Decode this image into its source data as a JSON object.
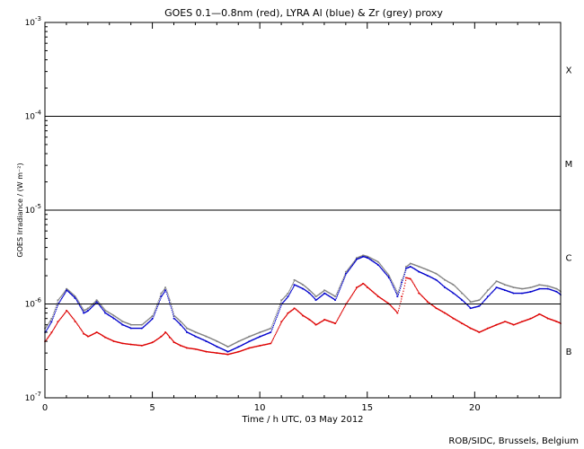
{
  "chart_data": {
    "type": "scatter",
    "title": "GOES 0.1—0.8nm (red), LYRA Al (blue) & Zr (grey) proxy",
    "xlabel": "Time / h UTC, 03 May 2012",
    "ylabel": "GOES Irradiance / (W m⁻²)",
    "xlim": [
      0,
      24
    ],
    "ylim": [
      1e-07,
      0.001
    ],
    "yscale": "log",
    "grid": false,
    "x_ticks": [
      {
        "value": 0,
        "label": "0"
      },
      {
        "value": 5,
        "label": "5"
      },
      {
        "value": 10,
        "label": "10"
      },
      {
        "value": 15,
        "label": "15"
      },
      {
        "value": 20,
        "label": "20"
      }
    ],
    "y_ticks": [
      {
        "mantissa": "10",
        "exp": "-7",
        "value": 1e-07
      },
      {
        "mantissa": "10",
        "exp": "-6",
        "value": 1e-06
      },
      {
        "mantissa": "10",
        "exp": "-5",
        "value": 1e-05
      },
      {
        "mantissa": "10",
        "exp": "-4",
        "value": 0.0001
      },
      {
        "mantissa": "10",
        "exp": "-3",
        "value": 0.001
      }
    ],
    "flare_thresholds": [
      1e-06,
      1e-05,
      0.0001
    ],
    "flare_classes": [
      {
        "label": "X",
        "value": 0.000316
      },
      {
        "label": "M",
        "value": 3.16e-05
      },
      {
        "label": "C",
        "value": 3.16e-06
      },
      {
        "label": "B",
        "value": 3.16e-07
      }
    ],
    "series": [
      {
        "color": "#808080",
        "x": [
          0,
          0.3,
          0.6,
          1.0,
          1.4,
          1.8,
          2.0,
          2.4,
          2.8,
          3.2,
          3.6,
          4.0,
          4.5,
          5.0,
          5.4,
          5.6,
          5.8,
          6.0,
          6.3,
          6.6,
          7.0,
          7.5,
          8.0,
          8.5,
          9.0,
          9.5,
          10.0,
          10.5,
          11.0,
          11.3,
          11.6,
          12.0,
          12.3,
          12.6,
          13.0,
          13.5,
          14.0,
          14.5,
          14.8,
          15.0,
          15.5,
          16.0,
          16.4,
          16.6,
          16.8,
          17.0,
          17.4,
          17.8,
          18.2,
          18.6,
          19.0,
          19.4,
          19.8,
          20.2,
          20.6,
          21.0,
          21.4,
          21.8,
          22.2,
          22.6,
          23.0,
          23.4,
          23.8,
          24.0
        ],
        "values": [
          5.5e-07,
          7e-07,
          1.1e-06,
          1.45e-06,
          1.2e-06,
          8.5e-07,
          9e-07,
          1.1e-06,
          8.5e-07,
          7.5e-07,
          6.5e-07,
          6e-07,
          6e-07,
          7.5e-07,
          1.3e-06,
          1.5e-06,
          1.1e-06,
          7.5e-07,
          6.5e-07,
          5.5e-07,
          5e-07,
          4.5e-07,
          4e-07,
          3.5e-07,
          4e-07,
          4.5e-07,
          5e-07,
          5.5e-07,
          1.1e-06,
          1.3e-06,
          1.8e-06,
          1.6e-06,
          1.4e-06,
          1.2e-06,
          1.4e-06,
          1.2e-06,
          2.2e-06,
          3.1e-06,
          3.3e-06,
          3.2e-06,
          2.8e-06,
          2e-06,
          1.3e-06,
          1.8e-06,
          2.5e-06,
          2.7e-06,
          2.5e-06,
          2.3e-06,
          2.1e-06,
          1.8e-06,
          1.6e-06,
          1.3e-06,
          1.05e-06,
          1.1e-06,
          1.4e-06,
          1.75e-06,
          1.6e-06,
          1.5e-06,
          1.45e-06,
          1.5e-06,
          1.6e-06,
          1.55e-06,
          1.45e-06,
          1.35e-06
        ]
      },
      {
        "color": "#0000cc",
        "x": [
          0,
          0.3,
          0.6,
          1.0,
          1.4,
          1.8,
          2.0,
          2.4,
          2.8,
          3.2,
          3.6,
          4.0,
          4.5,
          5.0,
          5.4,
          5.6,
          5.8,
          6.0,
          6.3,
          6.6,
          7.0,
          7.5,
          8.0,
          8.5,
          9.0,
          9.5,
          10.0,
          10.5,
          11.0,
          11.3,
          11.6,
          12.0,
          12.3,
          12.6,
          13.0,
          13.5,
          14.0,
          14.5,
          14.8,
          15.0,
          15.5,
          16.0,
          16.4,
          16.6,
          16.8,
          17.0,
          17.4,
          17.8,
          18.2,
          18.6,
          19.0,
          19.4,
          19.8,
          20.2,
          20.6,
          21.0,
          21.4,
          21.8,
          22.2,
          22.6,
          23.0,
          23.4,
          23.8,
          24.0
        ],
        "values": [
          5e-07,
          6.5e-07,
          1e-06,
          1.4e-06,
          1.15e-06,
          8e-07,
          8.5e-07,
          1.05e-06,
          8e-07,
          7e-07,
          6e-07,
          5.5e-07,
          5.5e-07,
          7e-07,
          1.2e-06,
          1.4e-06,
          1e-06,
          7e-07,
          6e-07,
          5e-07,
          4.5e-07,
          4e-07,
          3.5e-07,
          3.1e-07,
          3.5e-07,
          4e-07,
          4.5e-07,
          5e-07,
          1e-06,
          1.2e-06,
          1.6e-06,
          1.45e-06,
          1.3e-06,
          1.1e-06,
          1.3e-06,
          1.1e-06,
          2.1e-06,
          3e-06,
          3.2e-06,
          3.1e-06,
          2.6e-06,
          1.9e-06,
          1.2e-06,
          1.7e-06,
          2.4e-06,
          2.5e-06,
          2.2e-06,
          2e-06,
          1.8e-06,
          1.5e-06,
          1.3e-06,
          1.1e-06,
          9e-07,
          9.5e-07,
          1.2e-06,
          1.5e-06,
          1.4e-06,
          1.3e-06,
          1.3e-06,
          1.35e-06,
          1.45e-06,
          1.45e-06,
          1.35e-06,
          1.25e-06
        ]
      },
      {
        "color": "#dd0000",
        "x": [
          0,
          0.3,
          0.6,
          1.0,
          1.4,
          1.8,
          2.0,
          2.4,
          2.8,
          3.2,
          3.6,
          4.0,
          4.5,
          5.0,
          5.4,
          5.6,
          5.8,
          6.0,
          6.3,
          6.6,
          7.0,
          7.5,
          8.0,
          8.5,
          9.0,
          9.5,
          10.0,
          10.5,
          11.0,
          11.3,
          11.6,
          12.0,
          12.3,
          12.6,
          13.0,
          13.5,
          14.0,
          14.5,
          14.8,
          15.0,
          15.5,
          16.0,
          16.4,
          16.6,
          16.8,
          17.0,
          17.4,
          17.8,
          18.2,
          18.6,
          19.0,
          19.4,
          19.8,
          20.2,
          20.6,
          21.0,
          21.4,
          21.8,
          22.2,
          22.6,
          23.0,
          23.4,
          23.8,
          24.0
        ],
        "values": [
          4e-07,
          5e-07,
          6.5e-07,
          8.5e-07,
          6.5e-07,
          4.8e-07,
          4.5e-07,
          5e-07,
          4.4e-07,
          4e-07,
          3.8e-07,
          3.7e-07,
          3.6e-07,
          3.9e-07,
          4.5e-07,
          5e-07,
          4.4e-07,
          3.9e-07,
          3.6e-07,
          3.4e-07,
          3.3e-07,
          3.1e-07,
          3e-07,
          2.9e-07,
          3.1e-07,
          3.4e-07,
          3.6e-07,
          3.8e-07,
          6.5e-07,
          8e-07,
          9e-07,
          7.5e-07,
          6.8e-07,
          6e-07,
          6.8e-07,
          6.2e-07,
          1e-06,
          1.5e-06,
          1.65e-06,
          1.5e-06,
          1.2e-06,
          1e-06,
          8e-07,
          1.2e-06,
          1.9e-06,
          1.85e-06,
          1.3e-06,
          1.05e-06,
          9e-07,
          8e-07,
          7e-07,
          6.2e-07,
          5.5e-07,
          5e-07,
          5.5e-07,
          6e-07,
          6.5e-07,
          6e-07,
          6.5e-07,
          7e-07,
          7.8e-07,
          7e-07,
          6.5e-07,
          6.2e-07
        ]
      }
    ]
  },
  "credit": "ROB/SIDC, Brussels, Belgium"
}
